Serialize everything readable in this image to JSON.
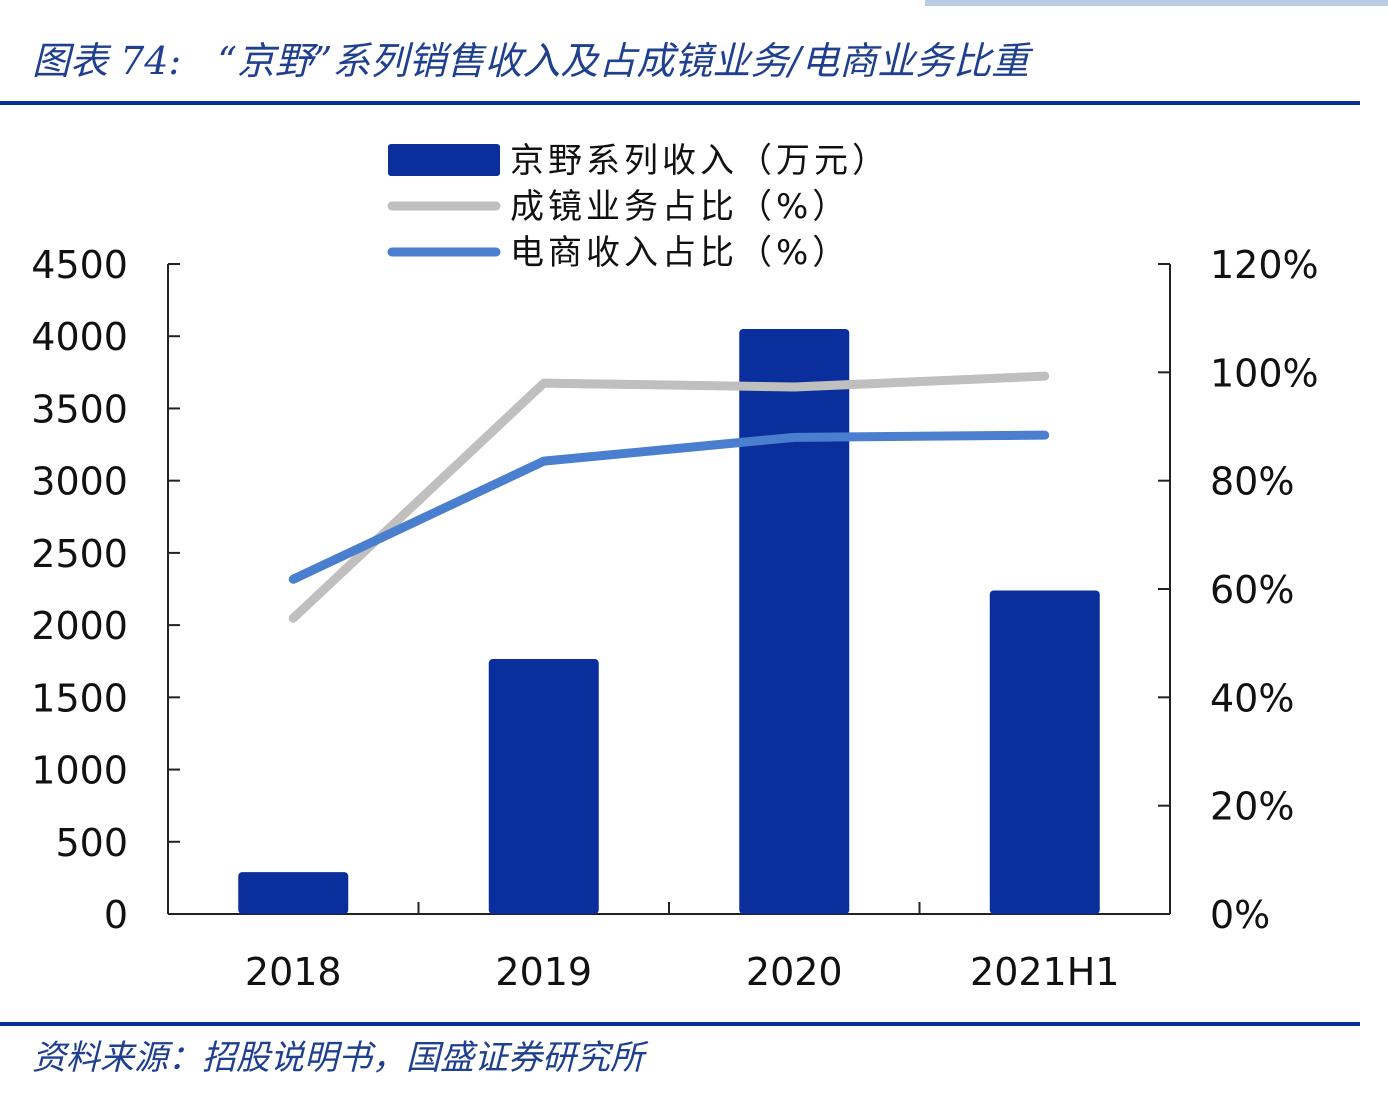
{
  "title": "图表 74:   “京野”系列销售收入及占成镜业务/电商业务比重",
  "source": "资料来源：招股说明书，国盛证券研究所",
  "chart_data": {
    "type": "bar+line",
    "categories": [
      "2018",
      "2019",
      "2020",
      "2021H1"
    ],
    "left_axis": {
      "ylim": [
        0,
        4500
      ],
      "ticks": [
        "0",
        "500",
        "1000",
        "1500",
        "2000",
        "2500",
        "3000",
        "3500",
        "4000",
        "4500"
      ]
    },
    "right_axis": {
      "ylim": [
        0,
        120
      ],
      "ticks": [
        "0%",
        "20%",
        "40%",
        "60%",
        "80%",
        "100%",
        "120%"
      ]
    },
    "series": [
      {
        "name": "京野系列收入（万元）",
        "type": "bar",
        "axis": "left",
        "color": "#0a2f9c",
        "values": [
          290,
          1765,
          4050,
          2240
        ]
      },
      {
        "name": "成镜业务占比（%）",
        "type": "line",
        "axis": "right",
        "color": "#bfbfbf",
        "values": [
          54.6,
          98.0,
          97.3,
          99.3
        ]
      },
      {
        "name": "电商收入占比（%）",
        "type": "line",
        "axis": "right",
        "color": "#4a7fcf",
        "values": [
          61.8,
          83.6,
          88.0,
          88.4
        ]
      }
    ],
    "legend": "top-center",
    "grid": false
  }
}
